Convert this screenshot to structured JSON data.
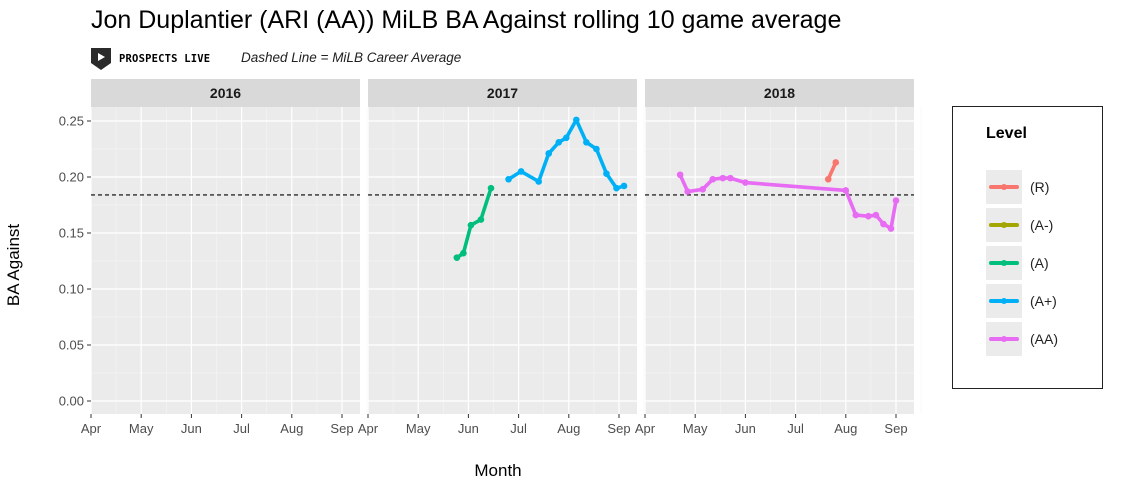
{
  "header": {
    "title": "Jon Duplantier (ARI (AA)) MiLB BA Against rolling 10 game average",
    "logo_text": "PROSPECTS LIVE",
    "subtitle": "Dashed Line = MiLB Career Average"
  },
  "legend": {
    "title": "Level",
    "items": [
      {
        "label": "(R)",
        "color": "#F8766D"
      },
      {
        "label": "(A-)",
        "color": "#A3A500"
      },
      {
        "label": "(A)",
        "color": "#00BF7D"
      },
      {
        "label": "(A+)",
        "color": "#00B0F6"
      },
      {
        "label": "(AA)",
        "color": "#E76BF3"
      }
    ]
  },
  "chart_data": {
    "type": "line",
    "title": "Jon Duplantier (ARI (AA)) MiLB BA Against rolling 10 game average",
    "xlabel": "Month",
    "ylabel": "BA Against",
    "ylim": [
      -0.012,
      0.26
    ],
    "yticks": [
      "0.00",
      "0.05",
      "0.10",
      "0.15",
      "0.20",
      "0.25"
    ],
    "xticks": [
      "Apr",
      "May",
      "Jun",
      "Jul",
      "Aug",
      "Sep"
    ],
    "career_average": 0.184,
    "legend_position": "right",
    "panels": [
      {
        "year": "2016",
        "series": []
      },
      {
        "year": "2017",
        "series": [
          {
            "name": "(A)",
            "color": "#00BF7D",
            "x": [
              5.77,
              5.9,
              6.05,
              6.25,
              6.45
            ],
            "y": [
              0.128,
              0.132,
              0.157,
              0.162,
              0.19
            ]
          },
          {
            "name": "(A+)",
            "color": "#00B0F6",
            "x": [
              6.8,
              7.05,
              7.4,
              7.6,
              7.8,
              7.95,
              8.15,
              8.35,
              8.55,
              8.75,
              8.95,
              9.1
            ],
            "y": [
              0.198,
              0.205,
              0.196,
              0.221,
              0.231,
              0.235,
              0.251,
              0.231,
              0.225,
              0.203,
              0.19,
              0.192
            ]
          }
        ]
      },
      {
        "year": "2018",
        "series": [
          {
            "name": "(R)",
            "color": "#F8766D",
            "x": [
              7.65,
              7.8
            ],
            "y": [
              0.198,
              0.213
            ]
          },
          {
            "name": "(AA)",
            "color": "#E76BF3",
            "x": [
              4.7,
              4.85,
              5.15,
              5.35,
              5.55,
              5.7,
              6.0,
              8.0,
              8.2,
              8.45,
              8.6,
              8.75,
              8.9,
              9.0
            ],
            "y": [
              0.202,
              0.187,
              0.189,
              0.198,
              0.199,
              0.199,
              0.195,
              0.188,
              0.166,
              0.165,
              0.166,
              0.158,
              0.154,
              0.179
            ]
          }
        ]
      }
    ]
  }
}
